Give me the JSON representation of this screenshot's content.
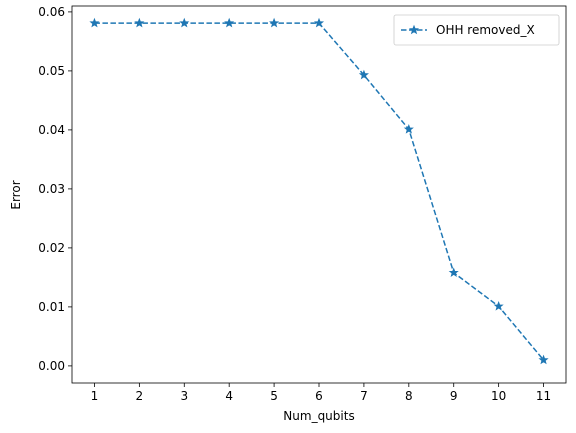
{
  "chart_data": {
    "type": "line",
    "title": "",
    "xlabel": "Num_qubits",
    "ylabel": "Error",
    "x": [
      1,
      2,
      3,
      4,
      5,
      6,
      7,
      8,
      9,
      10,
      11
    ],
    "xticks": [
      "1",
      "2",
      "3",
      "4",
      "5",
      "6",
      "7",
      "8",
      "9",
      "10",
      "11"
    ],
    "yticks": [
      "0.00",
      "0.01",
      "0.02",
      "0.03",
      "0.04",
      "0.05",
      "0.06"
    ],
    "ylim": [
      -0.0029,
      0.061
    ],
    "xlim": [
      0.5,
      11.5
    ],
    "grid": false,
    "legend_position": "top-right",
    "series": [
      {
        "name": "OHH removed_X",
        "color": "#1f77b4",
        "linestyle": "dashed",
        "marker": "star",
        "values": [
          0.0581,
          0.0581,
          0.0581,
          0.0581,
          0.0581,
          0.0581,
          0.0493,
          0.0401,
          0.0158,
          0.0101,
          0.001
        ]
      }
    ]
  }
}
